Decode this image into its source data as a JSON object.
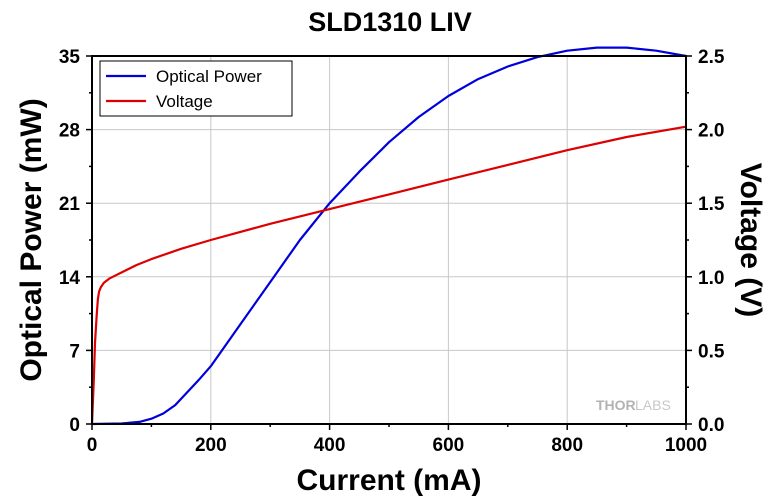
{
  "chart_data": {
    "type": "line",
    "title": "SLD1310 LIV",
    "xlabel": "Current (mA)",
    "ylabel": "Optical Power (mW)",
    "y2label": "Voltage (V)",
    "xlim": [
      0,
      1000
    ],
    "ylim": [
      0,
      35
    ],
    "y2lim": [
      0,
      2.5
    ],
    "x_ticks": [
      "0",
      "200",
      "400",
      "600",
      "800",
      "1000"
    ],
    "y_ticks": [
      "0",
      "7",
      "14",
      "21",
      "28",
      "35"
    ],
    "y2_ticks": [
      "0.0",
      "0.5",
      "1.0",
      "1.5",
      "2.0",
      "2.5"
    ],
    "grid": true,
    "legend_position": "top-left",
    "watermark": "THORLABS",
    "series": [
      {
        "name": "Optical Power",
        "axis": "left",
        "color": "#0000dd",
        "x": [
          0,
          50,
          80,
          100,
          120,
          140,
          160,
          180,
          200,
          250,
          300,
          350,
          400,
          450,
          500,
          550,
          600,
          650,
          700,
          750,
          800,
          850,
          900,
          950,
          1000
        ],
        "y": [
          0,
          0.05,
          0.2,
          0.5,
          1.0,
          1.8,
          3.0,
          4.2,
          5.5,
          9.5,
          13.5,
          17.5,
          21.0,
          24.0,
          26.8,
          29.2,
          31.2,
          32.8,
          34.0,
          34.9,
          35.5,
          35.8,
          35.8,
          35.5,
          35.0
        ]
      },
      {
        "name": "Voltage",
        "axis": "right",
        "color": "#dd0000",
        "x": [
          0,
          3,
          5,
          8,
          10,
          12,
          15,
          20,
          30,
          40,
          50,
          75,
          100,
          150,
          200,
          300,
          400,
          500,
          600,
          700,
          800,
          900,
          1000
        ],
        "y": [
          0,
          0.3,
          0.55,
          0.75,
          0.85,
          0.9,
          0.93,
          0.96,
          0.99,
          1.01,
          1.03,
          1.08,
          1.12,
          1.19,
          1.25,
          1.36,
          1.46,
          1.56,
          1.66,
          1.76,
          1.86,
          1.95,
          2.02
        ]
      }
    ]
  }
}
